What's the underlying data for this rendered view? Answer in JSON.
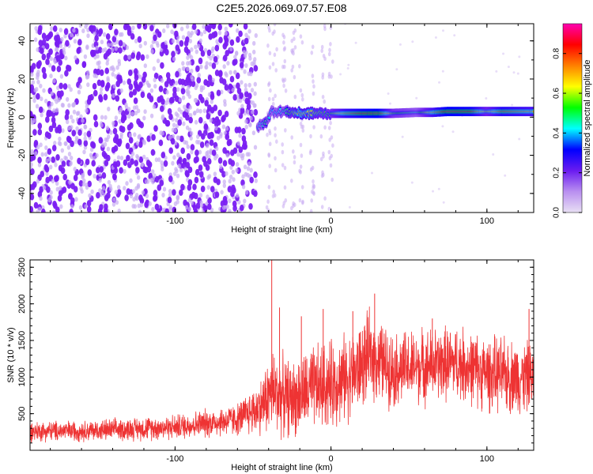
{
  "title": "C2E5.2026.069.07.57.E08",
  "chart_data": [
    {
      "type": "heatmap",
      "name": "spectrogram",
      "title": "C2E5.2026.069.07.57.E08",
      "xlabel": "Height of straight line (km)",
      "ylabel": "Frequency (Hz)",
      "xlim": [
        -193,
        130
      ],
      "ylim": [
        -50,
        49
      ],
      "xticks": [
        -100,
        0,
        100
      ],
      "xtick_labels": [
        "-100",
        "0",
        "100"
      ],
      "yticks": [
        -40,
        -20,
        0,
        20,
        40
      ],
      "ytick_labels": [
        "-40",
        "-20",
        "0",
        "20",
        "40"
      ],
      "grid": false,
      "noise_region_x": [
        -193,
        -48
      ],
      "noise_level": 0.1,
      "transition_x": [
        -48,
        -5
      ],
      "carrier_track": [
        {
          "x": -47,
          "freq": -5,
          "amp": 0.35
        },
        {
          "x": -42,
          "freq": -3,
          "amp": 0.5
        },
        {
          "x": -38,
          "freq": 3,
          "amp": 0.4
        },
        {
          "x": -30,
          "freq": 3,
          "amp": 0.45
        },
        {
          "x": -20,
          "freq": 2,
          "amp": 0.7
        },
        {
          "x": -10,
          "freq": 2,
          "amp": 0.6
        },
        {
          "x": 0,
          "freq": 2,
          "amp": 0.55
        },
        {
          "x": 10,
          "freq": 2,
          "amp": 0.75
        },
        {
          "x": 20,
          "freq": 2,
          "amp": 0.85
        },
        {
          "x": 30,
          "freq": 2,
          "amp": 0.9
        },
        {
          "x": 40,
          "freq": 2,
          "amp": 0.55
        },
        {
          "x": 55,
          "freq": 2.5,
          "amp": 0.45
        },
        {
          "x": 65,
          "freq": 2.5,
          "amp": 0.7
        },
        {
          "x": 75,
          "freq": 3,
          "amp": 0.9
        },
        {
          "x": 90,
          "freq": 3,
          "amp": 0.85
        },
        {
          "x": 100,
          "freq": 3,
          "amp": 0.6
        },
        {
          "x": 110,
          "freq": 3,
          "amp": 0.8
        },
        {
          "x": 130,
          "freq": 3,
          "amp": 0.7
        }
      ]
    },
    {
      "type": "colorbar",
      "name": "amplitude-scale",
      "label": "Normalized spectral amplitude",
      "range": [
        0,
        0.95
      ],
      "ticks": [
        0.0,
        0.2,
        0.4,
        0.6,
        0.8
      ],
      "tick_labels": [
        "0.0",
        "0.2",
        "0.4",
        "0.6",
        "0.8"
      ],
      "colors": [
        "#e8e0f4",
        "#b98ff0",
        "#6a1bf0",
        "#0000ff",
        "#00ffff",
        "#00ff00",
        "#ffff00",
        "#ff8000",
        "#ff0000",
        "#ff00b0"
      ]
    },
    {
      "type": "line",
      "name": "snr",
      "xlabel": "Height of straight line (km)",
      "ylabel": "SNR (10 * v/v)",
      "xlim": [
        -193,
        130
      ],
      "ylim": [
        0,
        2600
      ],
      "xticks": [
        -100,
        0,
        100
      ],
      "xtick_labels": [
        "-100",
        "0",
        "100"
      ],
      "yticks": [
        500,
        1000,
        1500,
        2000,
        2500
      ],
      "ytick_labels": [
        "500",
        "1000",
        "1500",
        "2000",
        "2500"
      ],
      "grid": false,
      "color": "#ee3333",
      "envelope": [
        {
          "x": -193,
          "mean": 260,
          "spread": 160
        },
        {
          "x": -150,
          "mean": 270,
          "spread": 170
        },
        {
          "x": -100,
          "mean": 320,
          "spread": 200
        },
        {
          "x": -60,
          "mean": 420,
          "spread": 260
        },
        {
          "x": -45,
          "mean": 600,
          "spread": 450
        },
        {
          "x": -38,
          "mean": 800,
          "spread": 700
        },
        {
          "x": -25,
          "mean": 700,
          "spread": 600
        },
        {
          "x": -10,
          "mean": 850,
          "spread": 700
        },
        {
          "x": 0,
          "mean": 900,
          "spread": 700
        },
        {
          "x": 15,
          "mean": 1050,
          "spread": 700
        },
        {
          "x": 25,
          "mean": 1300,
          "spread": 700
        },
        {
          "x": 40,
          "mean": 1100,
          "spread": 600
        },
        {
          "x": 60,
          "mean": 1150,
          "spread": 600
        },
        {
          "x": 80,
          "mean": 1200,
          "spread": 600
        },
        {
          "x": 100,
          "mean": 1050,
          "spread": 600
        },
        {
          "x": 120,
          "mean": 1000,
          "spread": 600
        },
        {
          "x": 130,
          "mean": 1000,
          "spread": 550
        }
      ],
      "spikes": [
        {
          "x": -38,
          "y": 2600
        },
        {
          "x": -33,
          "y": 1950
        },
        {
          "x": -19,
          "y": 1830
        },
        {
          "x": -5,
          "y": 1930
        },
        {
          "x": 14,
          "y": 1900
        },
        {
          "x": 28,
          "y": 2140
        },
        {
          "x": 65,
          "y": 1800
        },
        {
          "x": 127,
          "y": 1930
        }
      ]
    }
  ]
}
